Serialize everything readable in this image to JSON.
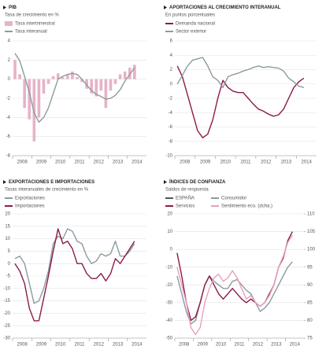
{
  "chart_data": [
    {
      "type": "bar",
      "title": "PIB",
      "subtitle": "Tasa de crecimiento en %",
      "categories": [
        "2008",
        null,
        null,
        null,
        "2009",
        null,
        null,
        null,
        "2010",
        null,
        null,
        null,
        "2011",
        null,
        null,
        null,
        "2012",
        null,
        null,
        null,
        "2013",
        null,
        null,
        null,
        "2014",
        null,
        null,
        null
      ],
      "series": [
        {
          "name": "Tasa intertrimestral",
          "color": "#e6b3c7",
          "values": [
            2,
            0.5,
            -3,
            -4.2,
            -6.5,
            -4,
            -1.5,
            -0.5,
            0.3,
            0.6,
            0.2,
            0.5,
            0.8,
            0.2,
            -0.3,
            -1,
            -1.5,
            -1.8,
            -1.2,
            -3,
            -1.2,
            -0.5,
            0.5,
            0.8,
            1.2,
            1.5,
            null,
            null
          ]
        },
        {
          "name": "Tasa interanual",
          "type": "line",
          "color": "#8c9aa0",
          "values": [
            2.7,
            1.9,
            0.3,
            -1.4,
            -3.5,
            -4.5,
            -4,
            -3,
            -1.5,
            0,
            0.3,
            0.5,
            0.6,
            0.5,
            0,
            -0.6,
            -1.2,
            -1.6,
            -1.8,
            -2.1,
            -2,
            -1.7,
            -1.1,
            -0.2,
            0.5,
            1.2,
            null,
            null
          ]
        }
      ],
      "ylim": [
        -8,
        4
      ],
      "yticks": [
        4,
        2,
        0,
        -2,
        -4,
        -6,
        -8
      ],
      "grid": true
    },
    {
      "type": "line",
      "title": "APORTACIONES AL CRECIMIENTO INTERANUAL",
      "subtitle": "En puntos porcentuales",
      "categories": [
        "2008",
        null,
        null,
        null,
        "2009",
        null,
        null,
        null,
        "2010",
        null,
        null,
        null,
        "2011",
        null,
        null,
        null,
        "2012",
        null,
        null,
        null,
        "2013",
        null,
        null,
        null,
        "2014",
        null,
        null,
        null
      ],
      "series": [
        {
          "name": "Demanda nacional",
          "color": "#8b1a4a",
          "values": [
            2.5,
            1,
            -1.5,
            -4,
            -6.5,
            -7.5,
            -7,
            -5,
            -2,
            0.5,
            -0.5,
            -1,
            -1.2,
            -1.2,
            -2,
            -2.8,
            -3.5,
            -3.8,
            -4.2,
            -4.5,
            -4.3,
            -3.5,
            -2,
            -0.5,
            0.3,
            0.8,
            null,
            null
          ]
        },
        {
          "name": "Sector exterior",
          "color": "#8c9aa0",
          "values": [
            0,
            1.2,
            2.5,
            3.3,
            3.5,
            3.7,
            2.5,
            1,
            0.5,
            -0.5,
            1,
            1.3,
            1.5,
            1.8,
            2,
            2.3,
            2.5,
            2.3,
            2.4,
            2.3,
            2.2,
            1.8,
            0.8,
            0.3,
            -0.3,
            -0.5,
            null,
            null
          ]
        }
      ],
      "ylim": [
        -10,
        6
      ],
      "yticks": [
        6,
        4,
        2,
        0,
        -2,
        -4,
        -6,
        -8,
        -10
      ],
      "grid": true
    },
    {
      "type": "line",
      "title": "EXPORTACIONES E IMPORTACIONES",
      "subtitle": "Tasas interanuales de crecimiento en %",
      "categories": [
        "2008",
        null,
        null,
        null,
        "2009",
        null,
        null,
        null,
        "2010",
        null,
        null,
        null,
        "2011",
        null,
        null,
        null,
        "2012",
        null,
        null,
        null,
        "2013",
        null,
        null,
        null,
        "2014",
        null,
        null,
        null
      ],
      "series": [
        {
          "name": "Exportaciones",
          "color": "#8c9aa0",
          "values": [
            2,
            3,
            0,
            -8,
            -16,
            -15,
            -10,
            -3,
            8,
            11,
            10,
            14,
            13,
            9,
            8,
            3,
            0,
            1,
            4,
            3,
            4,
            9,
            3,
            3,
            5,
            8,
            null,
            null
          ]
        },
        {
          "name": "Importaciones",
          "color": "#8b1a4a",
          "values": [
            0,
            -3,
            -8,
            -18,
            -23,
            -23,
            -14,
            -5,
            5,
            14,
            8,
            9,
            6,
            0,
            0,
            -4,
            -6,
            -6,
            -4,
            -7,
            -4,
            2,
            0,
            3,
            6,
            9,
            null,
            null
          ]
        }
      ],
      "ylim": [
        -30,
        20
      ],
      "yticks": [
        20,
        15,
        10,
        5,
        0,
        -5,
        -10,
        -15,
        -20,
        -25,
        -30
      ],
      "grid": true
    },
    {
      "type": "line",
      "title": "ÍNDICES DE CONFIANZA",
      "subtitle": "Saldos de respuesta",
      "label": "ESPAÑA",
      "categories": [
        "2008",
        null,
        null,
        null,
        "2009",
        null,
        null,
        null,
        "2010",
        null,
        null,
        null,
        "2011",
        null,
        null,
        null,
        "2012",
        null,
        null,
        null,
        "2013",
        null,
        null,
        null,
        "2014",
        null,
        null,
        null
      ],
      "series": [
        {
          "name": "Consumidor",
          "color": "#8c9aa0",
          "values": [
            -15,
            -25,
            -35,
            -42,
            -40,
            -30,
            -20,
            -15,
            -18,
            -20,
            -22,
            -22,
            -18,
            -17,
            -20,
            -23,
            -25,
            -30,
            -35,
            -33,
            -30,
            -25,
            -20,
            -15,
            -10,
            -7,
            null,
            null
          ]
        },
        {
          "name": "Servicios",
          "color": "#8b1a4a",
          "values": [
            -2,
            -15,
            -30,
            -40,
            -38,
            -30,
            -20,
            -15,
            -20,
            -25,
            -28,
            -25,
            -22,
            -25,
            -28,
            -30,
            -28,
            -30,
            -32,
            -30,
            -25,
            -20,
            -10,
            -5,
            5,
            10,
            null,
            null
          ]
        },
        {
          "name": "Sentimiento eco. (dcha.)",
          "axis": "y2",
          "color": "#e8a0bc",
          "values": [
            95,
            90,
            85,
            78,
            76,
            78,
            85,
            89,
            92,
            93,
            91,
            92,
            94,
            92,
            89,
            86,
            87,
            85,
            84,
            85,
            87,
            90,
            95,
            98,
            102,
            104,
            null,
            null
          ]
        }
      ],
      "ylim": [
        -50,
        20
      ],
      "yticks": [
        20,
        10,
        0,
        -10,
        -20,
        -30,
        -40,
        -50
      ],
      "y2lim": [
        75,
        110
      ],
      "y2ticks": [
        110,
        105,
        100,
        95,
        90,
        85,
        80,
        75
      ],
      "grid": true
    }
  ]
}
